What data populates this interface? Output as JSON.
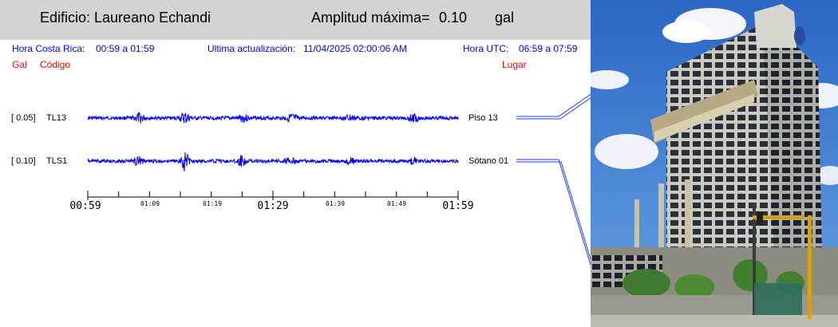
{
  "header": {
    "building": "Edificio: Laureano Echandi",
    "amp_label": "Amplitud máxima=",
    "amp_value": "0.10",
    "amp_unit": "gal"
  },
  "info": {
    "cr_label": "Hora Costa Rica:",
    "cr_range": "00:59 a 01:59",
    "update_label": "Ultima actualización:",
    "update_value": "11/04/2025 02:00:06 AM",
    "utc_label": "Hora UTC:",
    "utc_range": "06:59 a 07:59"
  },
  "columns": {
    "gal": "Gal",
    "code": "Código",
    "place": "Lugar"
  },
  "channels": [
    {
      "gal": "[  0.05]",
      "code": "TL13",
      "place": "Piso 13"
    },
    {
      "gal": "[  0.10]",
      "code": "TLS1",
      "place": "Sótano 01"
    }
  ],
  "axis": {
    "major": [
      "00:59",
      "01:29",
      "01:59"
    ],
    "minor": [
      "01:09",
      "01:19",
      "01:39",
      "01:49"
    ]
  },
  "colors": {
    "trace": "#0000ff",
    "header_bg": "#d3d3d3",
    "label_red": "#ff0000"
  }
}
